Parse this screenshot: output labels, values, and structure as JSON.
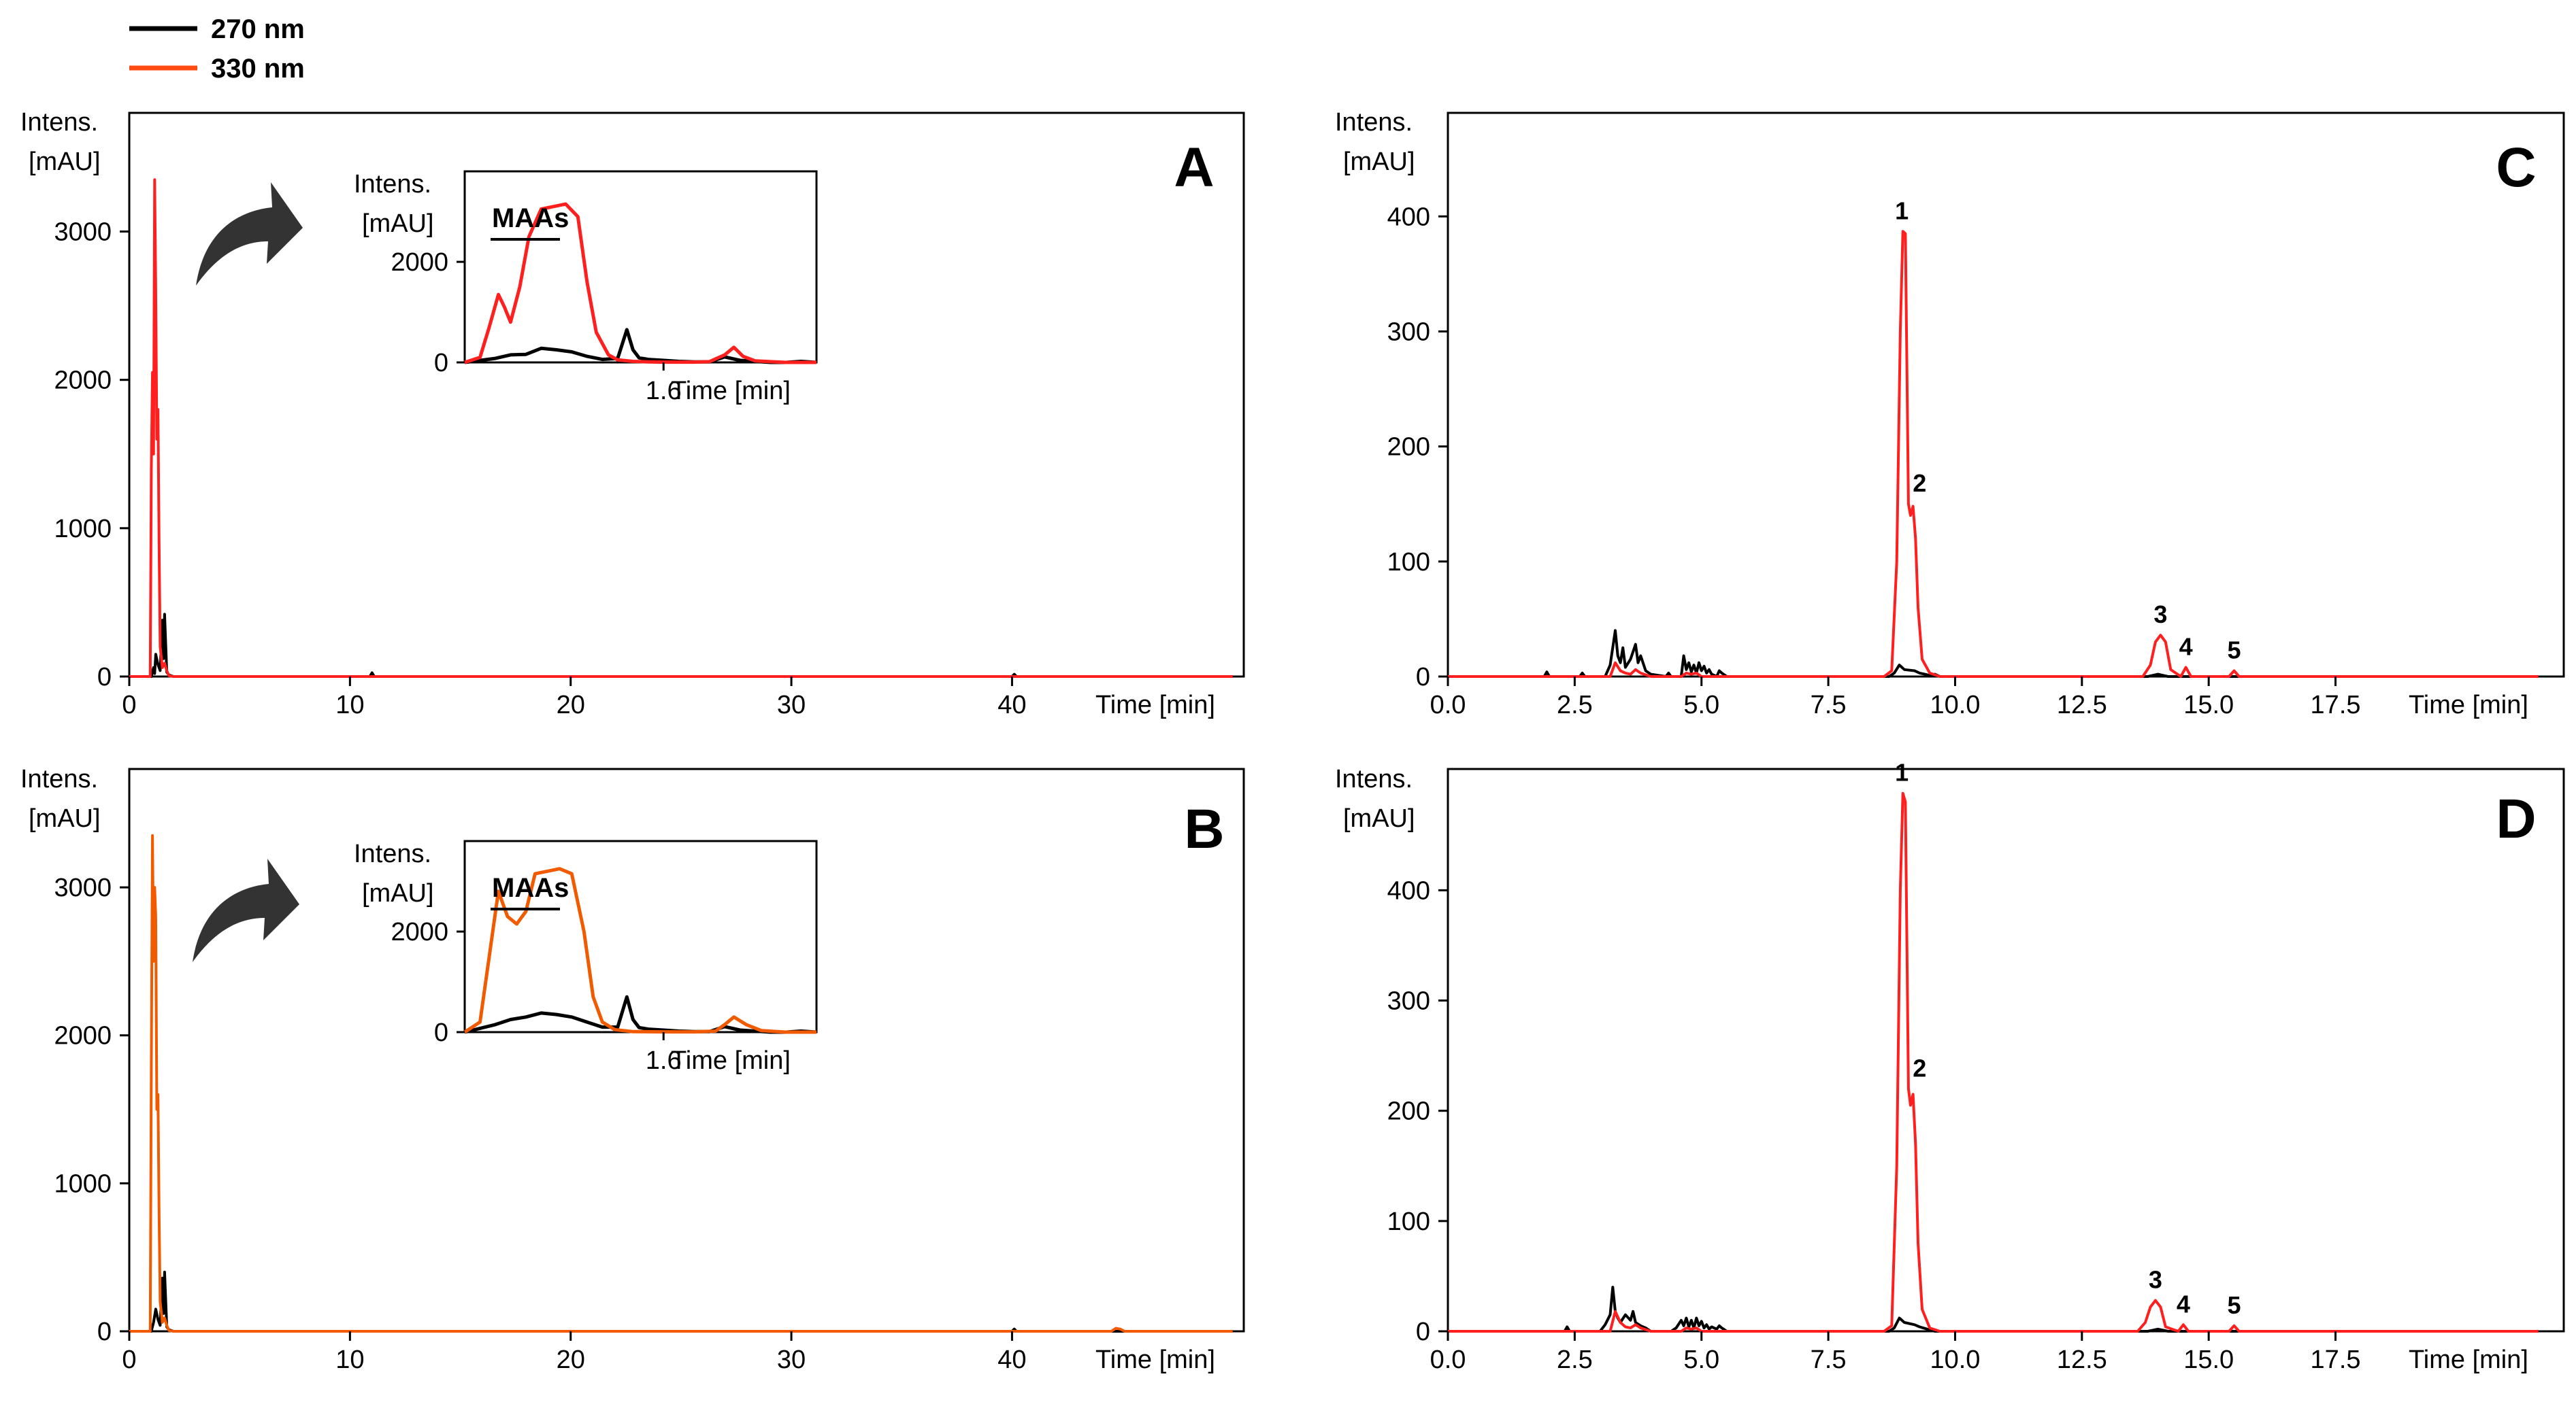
{
  "legend": [
    {
      "label": "270 nm",
      "color": "#000000"
    },
    {
      "label": "330 nm",
      "color": "#ff4a12"
    }
  ],
  "chart_data": [
    {
      "id": "A",
      "type": "line",
      "letter": "A",
      "ylabel_line1": "Intens.",
      "ylabel_line2": "[mAU]",
      "xlabel": "Time [min]",
      "xlim": [
        0,
        50.5
      ],
      "ylim": [
        0,
        3800
      ],
      "xticks": [
        0,
        10,
        20,
        30,
        40
      ],
      "xtick_labels": [
        "0",
        "10",
        "20",
        "30",
        "40"
      ],
      "yticks": [
        0,
        1000,
        2000,
        3000
      ],
      "ytick_labels": [
        "0",
        "1000",
        "2000",
        "3000"
      ],
      "series": [
        {
          "name": "270 nm",
          "color": "#000000",
          "x": [
            0,
            1.0,
            1.1,
            1.15,
            1.2,
            1.3,
            1.4,
            1.5,
            1.55,
            1.6,
            1.7,
            1.8,
            2.0,
            10.9,
            11.0,
            11.1,
            40.0,
            40.1,
            40.2,
            50.0
          ],
          "y": [
            0,
            0,
            60,
            20,
            150,
            80,
            40,
            380,
            120,
            420,
            30,
            10,
            0,
            0,
            25,
            0,
            0,
            15,
            0,
            0
          ]
        },
        {
          "name": "330 nm",
          "color": "#ff1f1f",
          "x": [
            0,
            0.95,
            1.0,
            1.05,
            1.1,
            1.15,
            1.2,
            1.25,
            1.3,
            1.35,
            1.4,
            1.5,
            1.6,
            1.7,
            1.8,
            2.0,
            50.0
          ],
          "y": [
            0,
            0,
            1400,
            2050,
            1500,
            3350,
            2600,
            1600,
            1800,
            900,
            200,
            60,
            90,
            40,
            5,
            0,
            0
          ]
        }
      ],
      "inset": {
        "ylabel_line1": "Intens.",
        "ylabel_line2": "[mAU]",
        "xlabel": "Time [min]",
        "xlim": [
          0.95,
          2.1
        ],
        "ylim": [
          0,
          3800
        ],
        "xticks": [
          1.6
        ],
        "xtick_labels": [
          "1.6"
        ],
        "yticks": [
          0,
          2000
        ],
        "ytick_labels": [
          "0",
          "2000"
        ],
        "annotation": "MAAs",
        "series": [
          {
            "name": "270 nm",
            "color": "#000000",
            "x": [
              0.95,
              1.05,
              1.1,
              1.15,
              1.2,
              1.25,
              1.3,
              1.35,
              1.4,
              1.45,
              1.48,
              1.5,
              1.52,
              1.55,
              1.6,
              1.65,
              1.7,
              1.75,
              1.8,
              1.85,
              1.9,
              1.95,
              2.0,
              2.05,
              2.1
            ],
            "y": [
              0,
              80,
              150,
              160,
              280,
              250,
              210,
              120,
              60,
              80,
              650,
              250,
              90,
              60,
              40,
              20,
              10,
              10,
              110,
              40,
              20,
              0,
              0,
              20,
              0
            ]
          },
          {
            "name": "330 nm",
            "color": "#ff1f1f",
            "x": [
              0.95,
              1.0,
              1.03,
              1.06,
              1.08,
              1.1,
              1.13,
              1.16,
              1.2,
              1.24,
              1.28,
              1.32,
              1.35,
              1.38,
              1.42,
              1.45,
              1.5,
              1.55,
              1.6,
              1.7,
              1.75,
              1.8,
              1.83,
              1.86,
              1.9,
              2.0,
              2.1
            ],
            "y": [
              0,
              100,
              700,
              1350,
              1100,
              800,
              1500,
              2500,
              3050,
              3100,
              3150,
              2900,
              1600,
              600,
              150,
              50,
              20,
              10,
              5,
              5,
              15,
              150,
              300,
              120,
              30,
              0,
              0
            ]
          }
        ]
      }
    },
    {
      "id": "B",
      "type": "line",
      "letter": "B",
      "ylabel_line1": "Intens.",
      "ylabel_line2": "[mAU]",
      "xlabel": "Time [min]",
      "xlim": [
        0,
        50.5
      ],
      "ylim": [
        0,
        3800
      ],
      "xticks": [
        0,
        10,
        20,
        30,
        40
      ],
      "xtick_labels": [
        "0",
        "10",
        "20",
        "30",
        "40"
      ],
      "yticks": [
        0,
        1000,
        2000,
        3000
      ],
      "ytick_labels": [
        "0",
        "1000",
        "2000",
        "3000"
      ],
      "series": [
        {
          "name": "270 nm",
          "color": "#000000",
          "x": [
            0,
            1.0,
            1.1,
            1.2,
            1.3,
            1.4,
            1.5,
            1.55,
            1.6,
            1.7,
            1.8,
            2.0,
            40.0,
            40.1,
            40.2,
            50.0
          ],
          "y": [
            0,
            0,
            60,
            150,
            80,
            40,
            360,
            120,
            400,
            30,
            10,
            0,
            0,
            15,
            0,
            0
          ]
        },
        {
          "name": "330 nm",
          "color": "#f25a00",
          "x": [
            0,
            0.95,
            1.0,
            1.05,
            1.1,
            1.15,
            1.2,
            1.25,
            1.3,
            1.35,
            1.4,
            1.5,
            1.6,
            1.7,
            1.8,
            2.0,
            44.5,
            44.7,
            44.9,
            45.1,
            50.0
          ],
          "y": [
            0,
            0,
            1800,
            3350,
            2500,
            3000,
            2800,
            1500,
            1600,
            800,
            200,
            60,
            90,
            40,
            5,
            0,
            0,
            20,
            15,
            0,
            0
          ]
        }
      ],
      "inset": {
        "ylabel_line1": "Intens.",
        "ylabel_line2": "[mAU]",
        "xlabel": "Time [min]",
        "xlim": [
          0.95,
          2.1
        ],
        "ylim": [
          0,
          3800
        ],
        "xticks": [
          1.6
        ],
        "xtick_labels": [
          "1.6"
        ],
        "yticks": [
          0,
          2000
        ],
        "ytick_labels": [
          "0",
          "2000"
        ],
        "annotation": "MAAs",
        "series": [
          {
            "name": "270 nm",
            "color": "#000000",
            "x": [
              0.95,
              1.05,
              1.1,
              1.15,
              1.2,
              1.25,
              1.3,
              1.35,
              1.4,
              1.45,
              1.48,
              1.5,
              1.52,
              1.55,
              1.6,
              1.65,
              1.7,
              1.75,
              1.8,
              1.85,
              1.9,
              1.95,
              2.0,
              2.05,
              2.1
            ],
            "y": [
              0,
              150,
              250,
              300,
              380,
              350,
              300,
              200,
              100,
              100,
              700,
              250,
              90,
              60,
              40,
              20,
              10,
              10,
              110,
              40,
              20,
              0,
              0,
              20,
              0
            ]
          },
          {
            "name": "330 nm",
            "color": "#f25a00",
            "x": [
              0.95,
              1.0,
              1.03,
              1.06,
              1.09,
              1.12,
              1.15,
              1.18,
              1.22,
              1.26,
              1.3,
              1.34,
              1.37,
              1.4,
              1.44,
              1.5,
              1.6,
              1.7,
              1.77,
              1.8,
              1.83,
              1.87,
              1.92,
              2.0,
              2.1
            ],
            "y": [
              0,
              200,
              1500,
              2800,
              2300,
              2150,
              2400,
              3150,
              3200,
              3250,
              3150,
              2000,
              700,
              200,
              50,
              10,
              5,
              5,
              20,
              150,
              300,
              150,
              30,
              0,
              0
            ]
          }
        ]
      }
    },
    {
      "id": "C",
      "type": "line",
      "letter": "C",
      "ylabel_line1": "Intens.",
      "ylabel_line2": "[mAU]",
      "xlabel": "Time [min]",
      "xlim": [
        0,
        22
      ],
      "ylim": [
        0,
        490
      ],
      "xticks": [
        0,
        2.5,
        5,
        7.5,
        10,
        12.5,
        15,
        17.5
      ],
      "xtick_labels": [
        "0.0",
        "2.5",
        "5.0",
        "7.5",
        "10.0",
        "12.5",
        "15.0",
        "17.5"
      ],
      "yticks": [
        0,
        100,
        200,
        300,
        400
      ],
      "ytick_labels": [
        "0",
        "100",
        "200",
        "300",
        "400"
      ],
      "peaks": [
        {
          "label": "1",
          "x": 8.95,
          "y": 387
        },
        {
          "label": "2",
          "x": 9.3,
          "y": 150
        },
        {
          "label": "3",
          "x": 14.05,
          "y": 36
        },
        {
          "label": "4",
          "x": 14.55,
          "y": 8
        },
        {
          "label": "5",
          "x": 15.5,
          "y": 5
        }
      ],
      "series": [
        {
          "name": "270 nm",
          "color": "#000000",
          "x": [
            0,
            1.9,
            1.95,
            2.0,
            2.6,
            2.65,
            2.7,
            3.1,
            3.2,
            3.3,
            3.35,
            3.4,
            3.45,
            3.5,
            3.6,
            3.7,
            3.75,
            3.8,
            3.9,
            4.0,
            4.3,
            4.35,
            4.4,
            4.6,
            4.65,
            4.7,
            4.75,
            4.8,
            4.85,
            4.9,
            4.95,
            5.0,
            5.05,
            5.1,
            5.15,
            5.2,
            5.3,
            5.35,
            5.4,
            5.5,
            8.7,
            8.8,
            8.9,
            9.0,
            9.2,
            9.3,
            9.4,
            9.5,
            9.6,
            9.7,
            13.8,
            14.0,
            14.2,
            21.5
          ],
          "y": [
            0,
            0,
            4,
            0,
            0,
            3,
            0,
            0,
            10,
            40,
            18,
            12,
            25,
            8,
            15,
            28,
            12,
            18,
            5,
            2,
            0,
            3,
            0,
            0,
            18,
            6,
            12,
            4,
            10,
            3,
            12,
            5,
            9,
            3,
            6,
            2,
            0,
            5,
            3,
            0,
            0,
            3,
            10,
            6,
            5,
            3,
            2,
            1,
            2,
            0,
            0,
            2,
            0,
            0
          ]
        },
        {
          "name": "330 nm",
          "color": "#ff1f1f",
          "x": [
            0,
            3.2,
            3.3,
            3.4,
            3.5,
            3.6,
            3.7,
            3.8,
            4.0,
            4.6,
            4.7,
            4.8,
            4.9,
            5.0,
            8.6,
            8.75,
            8.85,
            8.92,
            8.97,
            9.02,
            9.08,
            9.12,
            9.17,
            9.22,
            9.27,
            9.35,
            9.5,
            9.7,
            13.7,
            13.85,
            13.95,
            14.05,
            14.15,
            14.25,
            14.45,
            14.55,
            14.65,
            15.4,
            15.5,
            15.6,
            21.5
          ],
          "y": [
            0,
            0,
            12,
            5,
            3,
            2,
            6,
            3,
            0,
            0,
            3,
            2,
            3,
            0,
            0,
            5,
            100,
            300,
            387,
            385,
            150,
            140,
            148,
            120,
            60,
            15,
            3,
            0,
            0,
            10,
            30,
            36,
            30,
            6,
            0,
            8,
            0,
            0,
            5,
            0,
            0
          ]
        }
      ]
    },
    {
      "id": "D",
      "type": "line",
      "letter": "D",
      "ylabel_line1": "Intens.",
      "ylabel_line2": "[mAU]",
      "xlabel": "Time [min]",
      "xlim": [
        0,
        22
      ],
      "ylim": [
        0,
        510
      ],
      "xticks": [
        0,
        2.5,
        5,
        7.5,
        10,
        12.5,
        15,
        17.5
      ],
      "xtick_labels": [
        "0.0",
        "2.5",
        "5.0",
        "7.5",
        "10.0",
        "12.5",
        "15.0",
        "17.5"
      ],
      "yticks": [
        0,
        100,
        200,
        300,
        400
      ],
      "ytick_labels": [
        "0",
        "100",
        "200",
        "300",
        "400"
      ],
      "peaks": [
        {
          "label": "1",
          "x": 8.95,
          "y": 488
        },
        {
          "label": "2",
          "x": 9.3,
          "y": 220
        },
        {
          "label": "3",
          "x": 13.95,
          "y": 28
        },
        {
          "label": "4",
          "x": 14.5,
          "y": 6
        },
        {
          "label": "5",
          "x": 15.5,
          "y": 5
        }
      ],
      "series": [
        {
          "name": "270 nm",
          "color": "#000000",
          "x": [
            0,
            2.3,
            2.35,
            2.4,
            3.0,
            3.1,
            3.2,
            3.25,
            3.3,
            3.35,
            3.4,
            3.5,
            3.6,
            3.65,
            3.7,
            3.8,
            3.9,
            4.0,
            4.4,
            4.5,
            4.6,
            4.65,
            4.7,
            4.75,
            4.8,
            4.85,
            4.9,
            4.95,
            5.0,
            5.05,
            5.1,
            5.15,
            5.2,
            5.3,
            5.35,
            5.4,
            5.5,
            8.7,
            8.8,
            8.9,
            9.0,
            9.2,
            9.3,
            9.45,
            9.6,
            13.8,
            14.0,
            14.2,
            21.5
          ],
          "y": [
            0,
            0,
            4,
            0,
            0,
            6,
            15,
            40,
            18,
            12,
            8,
            15,
            10,
            18,
            8,
            5,
            3,
            0,
            0,
            3,
            10,
            5,
            12,
            4,
            10,
            3,
            12,
            5,
            9,
            3,
            6,
            2,
            4,
            2,
            5,
            3,
            0,
            0,
            3,
            12,
            8,
            6,
            4,
            2,
            0,
            0,
            2,
            0,
            0
          ]
        },
        {
          "name": "330 nm",
          "color": "#ff1f1f",
          "x": [
            0,
            3.2,
            3.3,
            3.4,
            3.5,
            3.6,
            3.7,
            3.8,
            4.0,
            4.6,
            4.7,
            4.8,
            4.9,
            5.0,
            8.6,
            8.75,
            8.85,
            8.92,
            8.97,
            9.02,
            9.08,
            9.12,
            9.17,
            9.22,
            9.27,
            9.35,
            9.5,
            9.7,
            13.6,
            13.75,
            13.85,
            13.95,
            14.05,
            14.15,
            14.4,
            14.5,
            14.6,
            15.4,
            15.5,
            15.6,
            21.5
          ],
          "y": [
            0,
            0,
            18,
            8,
            4,
            3,
            6,
            3,
            0,
            0,
            3,
            2,
            3,
            0,
            0,
            5,
            150,
            400,
            488,
            480,
            220,
            205,
            215,
            170,
            80,
            20,
            3,
            0,
            0,
            8,
            22,
            28,
            22,
            4,
            0,
            6,
            0,
            0,
            5,
            0,
            0
          ]
        }
      ]
    }
  ]
}
